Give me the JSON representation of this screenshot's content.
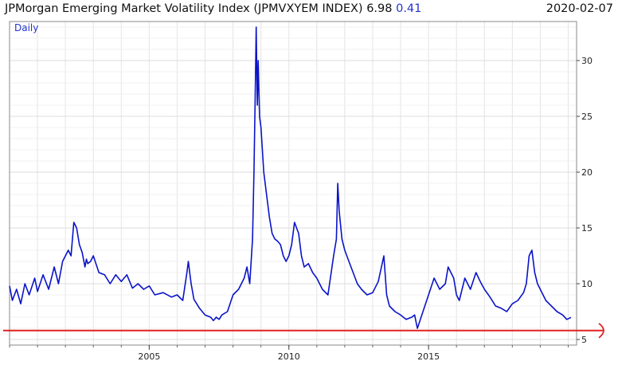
{
  "header": {
    "title": "JPMorgan Emerging Market Volatility Index (JPMVXYEM INDEX)",
    "last_value": "6.98",
    "change": "0.41",
    "date": "2020-02-07"
  },
  "chart_data": {
    "type": "line",
    "title": "JPMorgan Emerging Market Volatility Index (JPMVXYEM INDEX)",
    "period_label": "Daily",
    "xlabel": "",
    "ylabel": "",
    "xlim": [
      2000,
      2020.3
    ],
    "ylim": [
      4.5,
      33.5
    ],
    "x_ticks": [
      2005,
      2010,
      2015
    ],
    "y_ticks": [
      5,
      10,
      15,
      20,
      25,
      30
    ],
    "grid": true,
    "line_color": "#0a14c8",
    "reference_line": {
      "value": 5.8,
      "color": "#e02020"
    },
    "series": [
      {
        "x": [
          2000.0,
          2000.1,
          2000.25,
          2000.4,
          2000.55,
          2000.7,
          2000.9,
          2001.0,
          2001.2,
          2001.4,
          2001.6,
          2001.75,
          2001.9,
          2002.1,
          2002.2,
          2002.3,
          2002.4,
          2002.5,
          2002.6,
          2002.7,
          2002.75,
          2002.8,
          2002.9,
          2003.0,
          2003.2,
          2003.4,
          2003.6,
          2003.8,
          2004.0,
          2004.2,
          2004.4,
          2004.6,
          2004.8,
          2005.0,
          2005.2,
          2005.5,
          2005.8,
          2006.0,
          2006.2,
          2006.35,
          2006.4,
          2006.45,
          2006.5,
          2006.6,
          2006.8,
          2007.0,
          2007.2,
          2007.3,
          2007.4,
          2007.5,
          2007.6,
          2007.8,
          2008.0,
          2008.2,
          2008.4,
          2008.5,
          2008.6,
          2008.7,
          2008.75,
          2008.8,
          2008.83,
          2008.87,
          2008.9,
          2008.95,
          2009.0,
          2009.1,
          2009.2,
          2009.3,
          2009.4,
          2009.5,
          2009.6,
          2009.7,
          2009.8,
          2009.9,
          2010.0,
          2010.1,
          2010.2,
          2010.35,
          2010.45,
          2010.55,
          2010.7,
          2010.85,
          2011.0,
          2011.2,
          2011.4,
          2011.6,
          2011.7,
          2011.75,
          2011.8,
          2011.9,
          2012.0,
          2012.15,
          2012.3,
          2012.45,
          2012.6,
          2012.8,
          2013.0,
          2013.2,
          2013.4,
          2013.5,
          2013.6,
          2013.8,
          2014.0,
          2014.2,
          2014.4,
          2014.5,
          2014.6,
          2014.8,
          2015.0,
          2015.2,
          2015.4,
          2015.6,
          2015.7,
          2015.9,
          2016.0,
          2016.1,
          2016.3,
          2016.5,
          2016.7,
          2016.85,
          2017.0,
          2017.2,
          2017.4,
          2017.6,
          2017.8,
          2018.0,
          2018.2,
          2018.4,
          2018.5,
          2018.6,
          2018.7,
          2018.8,
          2018.9,
          2019.0,
          2019.2,
          2019.4,
          2019.6,
          2019.8,
          2019.95,
          2020.1
        ],
        "y": [
          9.8,
          8.5,
          9.5,
          8.2,
          10.0,
          9.0,
          10.5,
          9.3,
          10.8,
          9.5,
          11.5,
          10.0,
          12.0,
          13.0,
          12.5,
          15.5,
          15.0,
          13.5,
          12.8,
          11.5,
          12.2,
          11.8,
          12.0,
          12.5,
          11.0,
          10.8,
          10.0,
          10.8,
          10.2,
          10.8,
          9.6,
          10.0,
          9.5,
          9.8,
          9.0,
          9.2,
          8.8,
          9.0,
          8.5,
          11.0,
          12.0,
          11.0,
          10.0,
          8.6,
          7.8,
          7.2,
          7.0,
          6.7,
          7.0,
          6.8,
          7.2,
          7.5,
          9.0,
          9.5,
          10.5,
          11.5,
          10.0,
          14.0,
          20.0,
          28.0,
          33.0,
          26.0,
          30.0,
          25.0,
          24.0,
          20.0,
          18.0,
          16.0,
          14.5,
          14.0,
          13.8,
          13.5,
          12.5,
          12.0,
          12.5,
          13.5,
          15.5,
          14.5,
          12.5,
          11.5,
          11.8,
          11.0,
          10.5,
          9.5,
          9.0,
          12.5,
          14.0,
          19.0,
          16.5,
          14.0,
          13.0,
          12.0,
          11.0,
          10.0,
          9.5,
          9.0,
          9.2,
          10.2,
          12.5,
          9.0,
          8.0,
          7.5,
          7.2,
          6.8,
          7.0,
          7.2,
          6.0,
          7.5,
          9.0,
          10.5,
          9.5,
          10.0,
          11.5,
          10.5,
          9.0,
          8.5,
          10.5,
          9.5,
          11.0,
          10.2,
          9.5,
          8.8,
          8.0,
          7.8,
          7.5,
          8.2,
          8.5,
          9.2,
          10.0,
          12.5,
          13.0,
          11.0,
          10.0,
          9.5,
          8.5,
          8.0,
          7.5,
          7.2,
          6.8,
          6.98
        ]
      }
    ]
  }
}
